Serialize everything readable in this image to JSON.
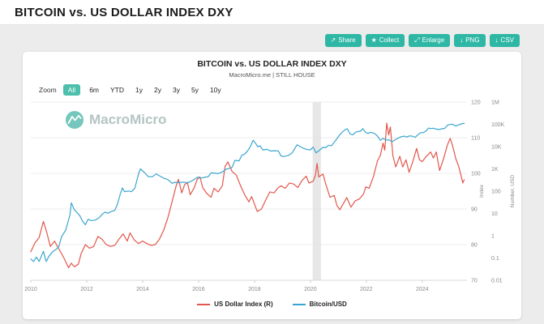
{
  "page": {
    "title": "BITCOIN vs. US DOLLAR INDEX DXY"
  },
  "toolbar": {
    "buttons": [
      {
        "label": "Share",
        "glyph": "↗"
      },
      {
        "label": "Collect",
        "glyph": "★"
      },
      {
        "label": "Enlarge",
        "glyph": "⤢"
      },
      {
        "label": "PNG",
        "glyph": "↓"
      },
      {
        "label": "CSV",
        "glyph": "↓"
      }
    ]
  },
  "zoom": {
    "label": "Zoom",
    "options": [
      "All",
      "6m",
      "YTD",
      "1y",
      "2y",
      "3y",
      "5y",
      "10y"
    ],
    "active": "All"
  },
  "watermark": {
    "text": "MacroMicro",
    "logo_color": "#53b9ac"
  },
  "chart_data": {
    "type": "line",
    "title": "BITCOIN vs. US DOLLAR INDEX DXY",
    "subtitle": "MacroMicro.me | STILL HOUSE",
    "x_range": [
      2010,
      2025.6
    ],
    "x_ticks": [
      2010,
      2012,
      2014,
      2016,
      2018,
      2020,
      2022,
      2024
    ],
    "index_axis": {
      "label": "Index",
      "range": [
        70,
        120
      ],
      "ticks": [
        120,
        110,
        100,
        90,
        80,
        70
      ]
    },
    "usd_axis": {
      "label": "Number, USD",
      "range": [
        0.01,
        1000000
      ],
      "scale": "log",
      "ticks": [
        [
          "1M",
          1000000
        ],
        [
          "100K",
          100000
        ],
        [
          "10K",
          10000
        ],
        [
          "1K",
          1000
        ],
        [
          "100",
          100
        ],
        [
          "10",
          10
        ],
        [
          "1",
          1
        ],
        [
          "0.1",
          0.1
        ],
        [
          "0.01",
          0.01
        ]
      ]
    },
    "recession_band": {
      "from": 2020.08,
      "to": 2020.38,
      "color": "#e3e3e3"
    },
    "grid_color": "#ededed",
    "series": [
      {
        "name": "US Dollar Index (R)",
        "axis": "index",
        "color": "#e2574c",
        "points": [
          [
            2010.0,
            78
          ],
          [
            2010.15,
            80.5
          ],
          [
            2010.3,
            82
          ],
          [
            2010.45,
            86.5
          ],
          [
            2010.55,
            84
          ],
          [
            2010.7,
            79.5
          ],
          [
            2010.85,
            81
          ],
          [
            2010.95,
            79.5
          ],
          [
            2011.1,
            77.5
          ],
          [
            2011.2,
            76
          ],
          [
            2011.35,
            73.5
          ],
          [
            2011.45,
            74.8
          ],
          [
            2011.55,
            73.8
          ],
          [
            2011.7,
            74.5
          ],
          [
            2011.8,
            77.5
          ],
          [
            2011.95,
            80
          ],
          [
            2012.1,
            79
          ],
          [
            2012.25,
            79.5
          ],
          [
            2012.4,
            82.3
          ],
          [
            2012.55,
            81.5
          ],
          [
            2012.7,
            80
          ],
          [
            2012.85,
            79.5
          ],
          [
            2013.0,
            79.8
          ],
          [
            2013.15,
            81.5
          ],
          [
            2013.3,
            83
          ],
          [
            2013.45,
            81
          ],
          [
            2013.55,
            83.3
          ],
          [
            2013.7,
            81.3
          ],
          [
            2013.85,
            80.3
          ],
          [
            2014.0,
            81
          ],
          [
            2014.15,
            80.3
          ],
          [
            2014.3,
            79.8
          ],
          [
            2014.45,
            80
          ],
          [
            2014.6,
            81.5
          ],
          [
            2014.75,
            84
          ],
          [
            2014.9,
            87.5
          ],
          [
            2015.05,
            92
          ],
          [
            2015.2,
            96.5
          ],
          [
            2015.28,
            98.3
          ],
          [
            2015.4,
            94.5
          ],
          [
            2015.5,
            96.8
          ],
          [
            2015.6,
            97.5
          ],
          [
            2015.7,
            94
          ],
          [
            2015.85,
            96
          ],
          [
            2015.95,
            98.3
          ],
          [
            2016.05,
            99
          ],
          [
            2016.15,
            96
          ],
          [
            2016.3,
            94.3
          ],
          [
            2016.45,
            93.3
          ],
          [
            2016.55,
            95.8
          ],
          [
            2016.7,
            94.8
          ],
          [
            2016.85,
            96.5
          ],
          [
            2016.95,
            102
          ],
          [
            2017.05,
            103.2
          ],
          [
            2017.2,
            100.5
          ],
          [
            2017.35,
            99.5
          ],
          [
            2017.5,
            96.5
          ],
          [
            2017.65,
            94
          ],
          [
            2017.8,
            92
          ],
          [
            2017.9,
            93.5
          ],
          [
            2017.98,
            91.8
          ],
          [
            2018.1,
            89.3
          ],
          [
            2018.25,
            90
          ],
          [
            2018.4,
            92.5
          ],
          [
            2018.55,
            94.8
          ],
          [
            2018.7,
            94.5
          ],
          [
            2018.85,
            96
          ],
          [
            2018.95,
            96.5
          ],
          [
            2019.1,
            95.8
          ],
          [
            2019.25,
            97.3
          ],
          [
            2019.4,
            97
          ],
          [
            2019.55,
            96
          ],
          [
            2019.7,
            98
          ],
          [
            2019.85,
            99.2
          ],
          [
            2019.95,
            97.3
          ],
          [
            2020.1,
            97.8
          ],
          [
            2020.18,
            99.5
          ],
          [
            2020.24,
            102.8
          ],
          [
            2020.3,
            99
          ],
          [
            2020.45,
            99.8
          ],
          [
            2020.55,
            97
          ],
          [
            2020.7,
            93.3
          ],
          [
            2020.85,
            93.8
          ],
          [
            2020.95,
            91
          ],
          [
            2021.05,
            89.8
          ],
          [
            2021.2,
            91.8
          ],
          [
            2021.3,
            93.2
          ],
          [
            2021.45,
            90.5
          ],
          [
            2021.6,
            92.3
          ],
          [
            2021.75,
            92.8
          ],
          [
            2021.9,
            94.2
          ],
          [
            2021.98,
            96.2
          ],
          [
            2022.1,
            95.8
          ],
          [
            2022.25,
            99
          ],
          [
            2022.4,
            103.5
          ],
          [
            2022.5,
            105
          ],
          [
            2022.6,
            108.5
          ],
          [
            2022.66,
            106.5
          ],
          [
            2022.73,
            114.1
          ],
          [
            2022.8,
            110.8
          ],
          [
            2022.86,
            113
          ],
          [
            2022.95,
            105
          ],
          [
            2023.05,
            101.8
          ],
          [
            2023.2,
            104.8
          ],
          [
            2023.3,
            101.8
          ],
          [
            2023.42,
            103.8
          ],
          [
            2023.53,
            100.3
          ],
          [
            2023.65,
            103
          ],
          [
            2023.8,
            107
          ],
          [
            2023.9,
            103.8
          ],
          [
            2024.0,
            103.3
          ],
          [
            2024.15,
            104.8
          ],
          [
            2024.3,
            106
          ],
          [
            2024.4,
            104.3
          ],
          [
            2024.5,
            106
          ],
          [
            2024.62,
            100.8
          ],
          [
            2024.75,
            103.8
          ],
          [
            2024.9,
            108
          ],
          [
            2025.0,
            109.8
          ],
          [
            2025.1,
            107.3
          ],
          [
            2025.2,
            104.1
          ],
          [
            2025.3,
            102
          ],
          [
            2025.4,
            99
          ],
          [
            2025.45,
            97.3
          ],
          [
            2025.5,
            98.2
          ]
        ]
      },
      {
        "name": "Bitcoin/USD",
        "axis": "usd_log",
        "color": "#3aa6d0",
        "points": [
          [
            2010.0,
            0.09
          ],
          [
            2010.1,
            0.07
          ],
          [
            2010.2,
            0.11
          ],
          [
            2010.3,
            0.07
          ],
          [
            2010.45,
            0.2
          ],
          [
            2010.55,
            0.07
          ],
          [
            2010.65,
            0.12
          ],
          [
            2010.8,
            0.2
          ],
          [
            2010.9,
            0.24
          ],
          [
            2011.0,
            0.32
          ],
          [
            2011.1,
            0.9
          ],
          [
            2011.25,
            1.8
          ],
          [
            2011.4,
            8.5
          ],
          [
            2011.45,
            30
          ],
          [
            2011.55,
            15
          ],
          [
            2011.65,
            11
          ],
          [
            2011.75,
            8
          ],
          [
            2011.85,
            4.5
          ],
          [
            2011.95,
            3.1
          ],
          [
            2012.05,
            5.5
          ],
          [
            2012.15,
            4.8
          ],
          [
            2012.3,
            5
          ],
          [
            2012.45,
            6.5
          ],
          [
            2012.55,
            9
          ],
          [
            2012.65,
            11.5
          ],
          [
            2012.75,
            10.2
          ],
          [
            2012.9,
            12.5
          ],
          [
            2013.0,
            13.5
          ],
          [
            2013.1,
            26
          ],
          [
            2013.2,
            75
          ],
          [
            2013.28,
            140
          ],
          [
            2013.35,
            95
          ],
          [
            2013.5,
            102
          ],
          [
            2013.6,
            94
          ],
          [
            2013.72,
            135
          ],
          [
            2013.85,
            580
          ],
          [
            2013.92,
            1000
          ],
          [
            2014.0,
            810
          ],
          [
            2014.1,
            625
          ],
          [
            2014.2,
            450
          ],
          [
            2014.35,
            445
          ],
          [
            2014.48,
            595
          ],
          [
            2014.6,
            490
          ],
          [
            2014.75,
            385
          ],
          [
            2014.9,
            330
          ],
          [
            2015.05,
            225
          ],
          [
            2015.15,
            250
          ],
          [
            2015.3,
            240
          ],
          [
            2015.45,
            255
          ],
          [
            2015.6,
            235
          ],
          [
            2015.75,
            285
          ],
          [
            2015.9,
            375
          ],
          [
            2015.97,
            430
          ],
          [
            2016.1,
            385
          ],
          [
            2016.2,
            415
          ],
          [
            2016.35,
            450
          ],
          [
            2016.45,
            665
          ],
          [
            2016.55,
            655
          ],
          [
            2016.7,
            610
          ],
          [
            2016.85,
            730
          ],
          [
            2016.97,
            960
          ],
          [
            2017.1,
            1050
          ],
          [
            2017.2,
            1180
          ],
          [
            2017.3,
            2400
          ],
          [
            2017.45,
            2300
          ],
          [
            2017.55,
            4200
          ],
          [
            2017.65,
            4600
          ],
          [
            2017.75,
            6400
          ],
          [
            2017.85,
            9800
          ],
          [
            2017.95,
            19000
          ],
          [
            2018.05,
            13500
          ],
          [
            2018.12,
            9800
          ],
          [
            2018.2,
            11000
          ],
          [
            2018.3,
            7100
          ],
          [
            2018.45,
            7500
          ],
          [
            2018.58,
            6300
          ],
          [
            2018.7,
            6500
          ],
          [
            2018.85,
            6400
          ],
          [
            2018.95,
            3800
          ],
          [
            2019.05,
            3600
          ],
          [
            2019.2,
            3950
          ],
          [
            2019.35,
            5300
          ],
          [
            2019.45,
            8600
          ],
          [
            2019.52,
            12000
          ],
          [
            2019.62,
            10300
          ],
          [
            2019.75,
            8400
          ],
          [
            2019.9,
            7300
          ],
          [
            2020.0,
            7200
          ],
          [
            2020.1,
            9500
          ],
          [
            2020.2,
            5200
          ],
          [
            2020.32,
            6800
          ],
          [
            2020.45,
            9300
          ],
          [
            2020.55,
            9150
          ],
          [
            2020.65,
            11500
          ],
          [
            2020.75,
            10800
          ],
          [
            2020.85,
            15500
          ],
          [
            2020.95,
            23000
          ],
          [
            2021.05,
            34000
          ],
          [
            2021.15,
            46000
          ],
          [
            2021.25,
            58500
          ],
          [
            2021.32,
            63000
          ],
          [
            2021.42,
            37000
          ],
          [
            2021.52,
            34000
          ],
          [
            2021.62,
            44500
          ],
          [
            2021.7,
            47500
          ],
          [
            2021.8,
            49000
          ],
          [
            2021.87,
            64400
          ],
          [
            2021.95,
            47000
          ],
          [
            2022.05,
            38500
          ],
          [
            2022.15,
            44000
          ],
          [
            2022.28,
            40000
          ],
          [
            2022.4,
            30000
          ],
          [
            2022.5,
            19000
          ],
          [
            2022.6,
            23500
          ],
          [
            2022.72,
            19500
          ],
          [
            2022.82,
            20000
          ],
          [
            2022.92,
            16500
          ],
          [
            2023.05,
            21000
          ],
          [
            2023.15,
            24500
          ],
          [
            2023.25,
            28000
          ],
          [
            2023.35,
            29500
          ],
          [
            2023.45,
            27000
          ],
          [
            2023.55,
            30500
          ],
          [
            2023.65,
            29200
          ],
          [
            2023.75,
            26100
          ],
          [
            2023.85,
            34500
          ],
          [
            2023.95,
            42200
          ],
          [
            2024.05,
            43000
          ],
          [
            2024.15,
            52000
          ],
          [
            2024.22,
            68000
          ],
          [
            2024.3,
            64500
          ],
          [
            2024.4,
            67000
          ],
          [
            2024.5,
            61000
          ],
          [
            2024.6,
            58500
          ],
          [
            2024.7,
            63000
          ],
          [
            2024.8,
            66000
          ],
          [
            2024.9,
            91000
          ],
          [
            2024.97,
            97000
          ],
          [
            2025.05,
            102000
          ],
          [
            2025.12,
            96000
          ],
          [
            2025.2,
            84000
          ],
          [
            2025.3,
            94000
          ],
          [
            2025.4,
            104000
          ],
          [
            2025.45,
            109000
          ],
          [
            2025.5,
            110000
          ]
        ]
      }
    ]
  }
}
